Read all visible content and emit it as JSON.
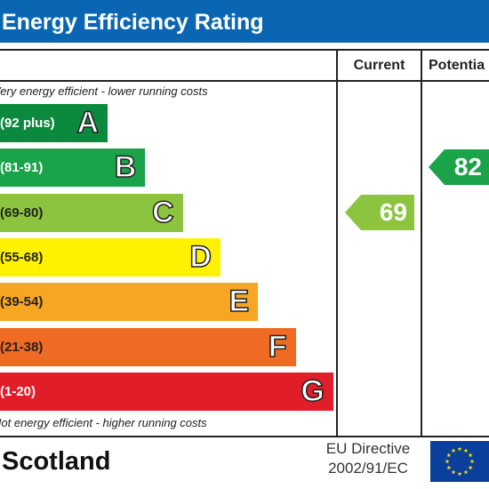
{
  "header": {
    "title": "Energy Efficiency Rating"
  },
  "columns": {
    "current": "Current",
    "potential": "Potentia"
  },
  "notes": {
    "top": "Very energy efficient - lower running costs",
    "bottom": "Not energy efficient - higher running costs"
  },
  "chart_data": {
    "type": "bar",
    "title": "Energy Efficiency Rating",
    "categories": [
      "A",
      "B",
      "C",
      "D",
      "E",
      "F",
      "G"
    ],
    "ranges": [
      "(92 plus)",
      "(81-91)",
      "(69-80)",
      "(55-68)",
      "(39-54)",
      "(21-38)",
      "(1-20)"
    ],
    "colors": [
      "#0b8a3e",
      "#1ba34a",
      "#8cc43f",
      "#fff200",
      "#f6a623",
      "#ef6a22",
      "#e21d2a"
    ],
    "range_text_colors": [
      "#ffffff",
      "#ffffff",
      "#222222",
      "#222222",
      "#222222",
      "#222222",
      "#ffffff"
    ],
    "current": {
      "value": 69,
      "band": "C",
      "color": "#8cc43f"
    },
    "potential": {
      "value": 82,
      "band": "B",
      "color": "#1ba34a"
    }
  },
  "footer": {
    "country": "Scotland",
    "directive_line1": "EU Directive",
    "directive_line2": "2002/91/EC",
    "flag_icon": "eu-flag-icon"
  }
}
